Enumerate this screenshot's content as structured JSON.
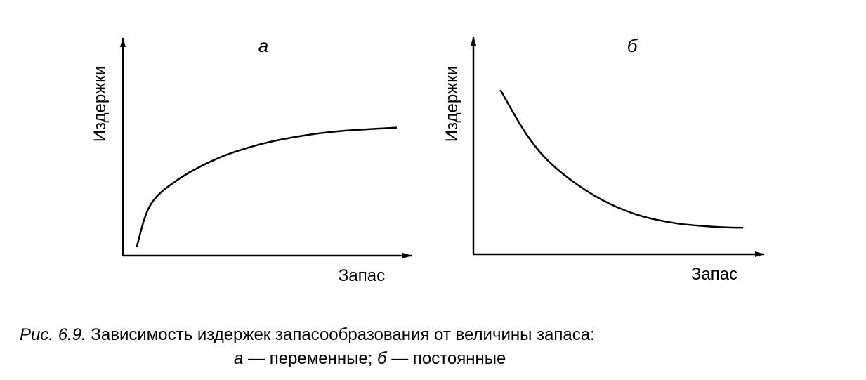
{
  "chart_data": [
    {
      "type": "line",
      "panel_label": "а",
      "xlabel": "Запас",
      "ylabel": "Издержки",
      "series": [
        {
          "x": [
            0.05,
            0.1,
            0.2,
            0.35,
            0.5,
            0.65,
            0.8,
            1.0
          ],
          "y": [
            0.05,
            0.3,
            0.45,
            0.58,
            0.66,
            0.71,
            0.74,
            0.76
          ]
        }
      ]
    },
    {
      "type": "line",
      "panel_label": "б",
      "xlabel": "Запас",
      "ylabel": "Издержки",
      "series": [
        {
          "x": [
            0.1,
            0.2,
            0.3,
            0.45,
            0.6,
            0.75,
            0.9,
            1.0
          ],
          "y": [
            0.9,
            0.65,
            0.48,
            0.32,
            0.22,
            0.17,
            0.15,
            0.145
          ]
        }
      ]
    }
  ],
  "caption": {
    "prefix": "Рис. 6.9.",
    "text": " Зависимость издержек запасообразования от величины запаса:",
    "a_letter": "а",
    "a_text": " — переменные; ",
    "b_letter": "б",
    "b_text": " — постоянные"
  }
}
